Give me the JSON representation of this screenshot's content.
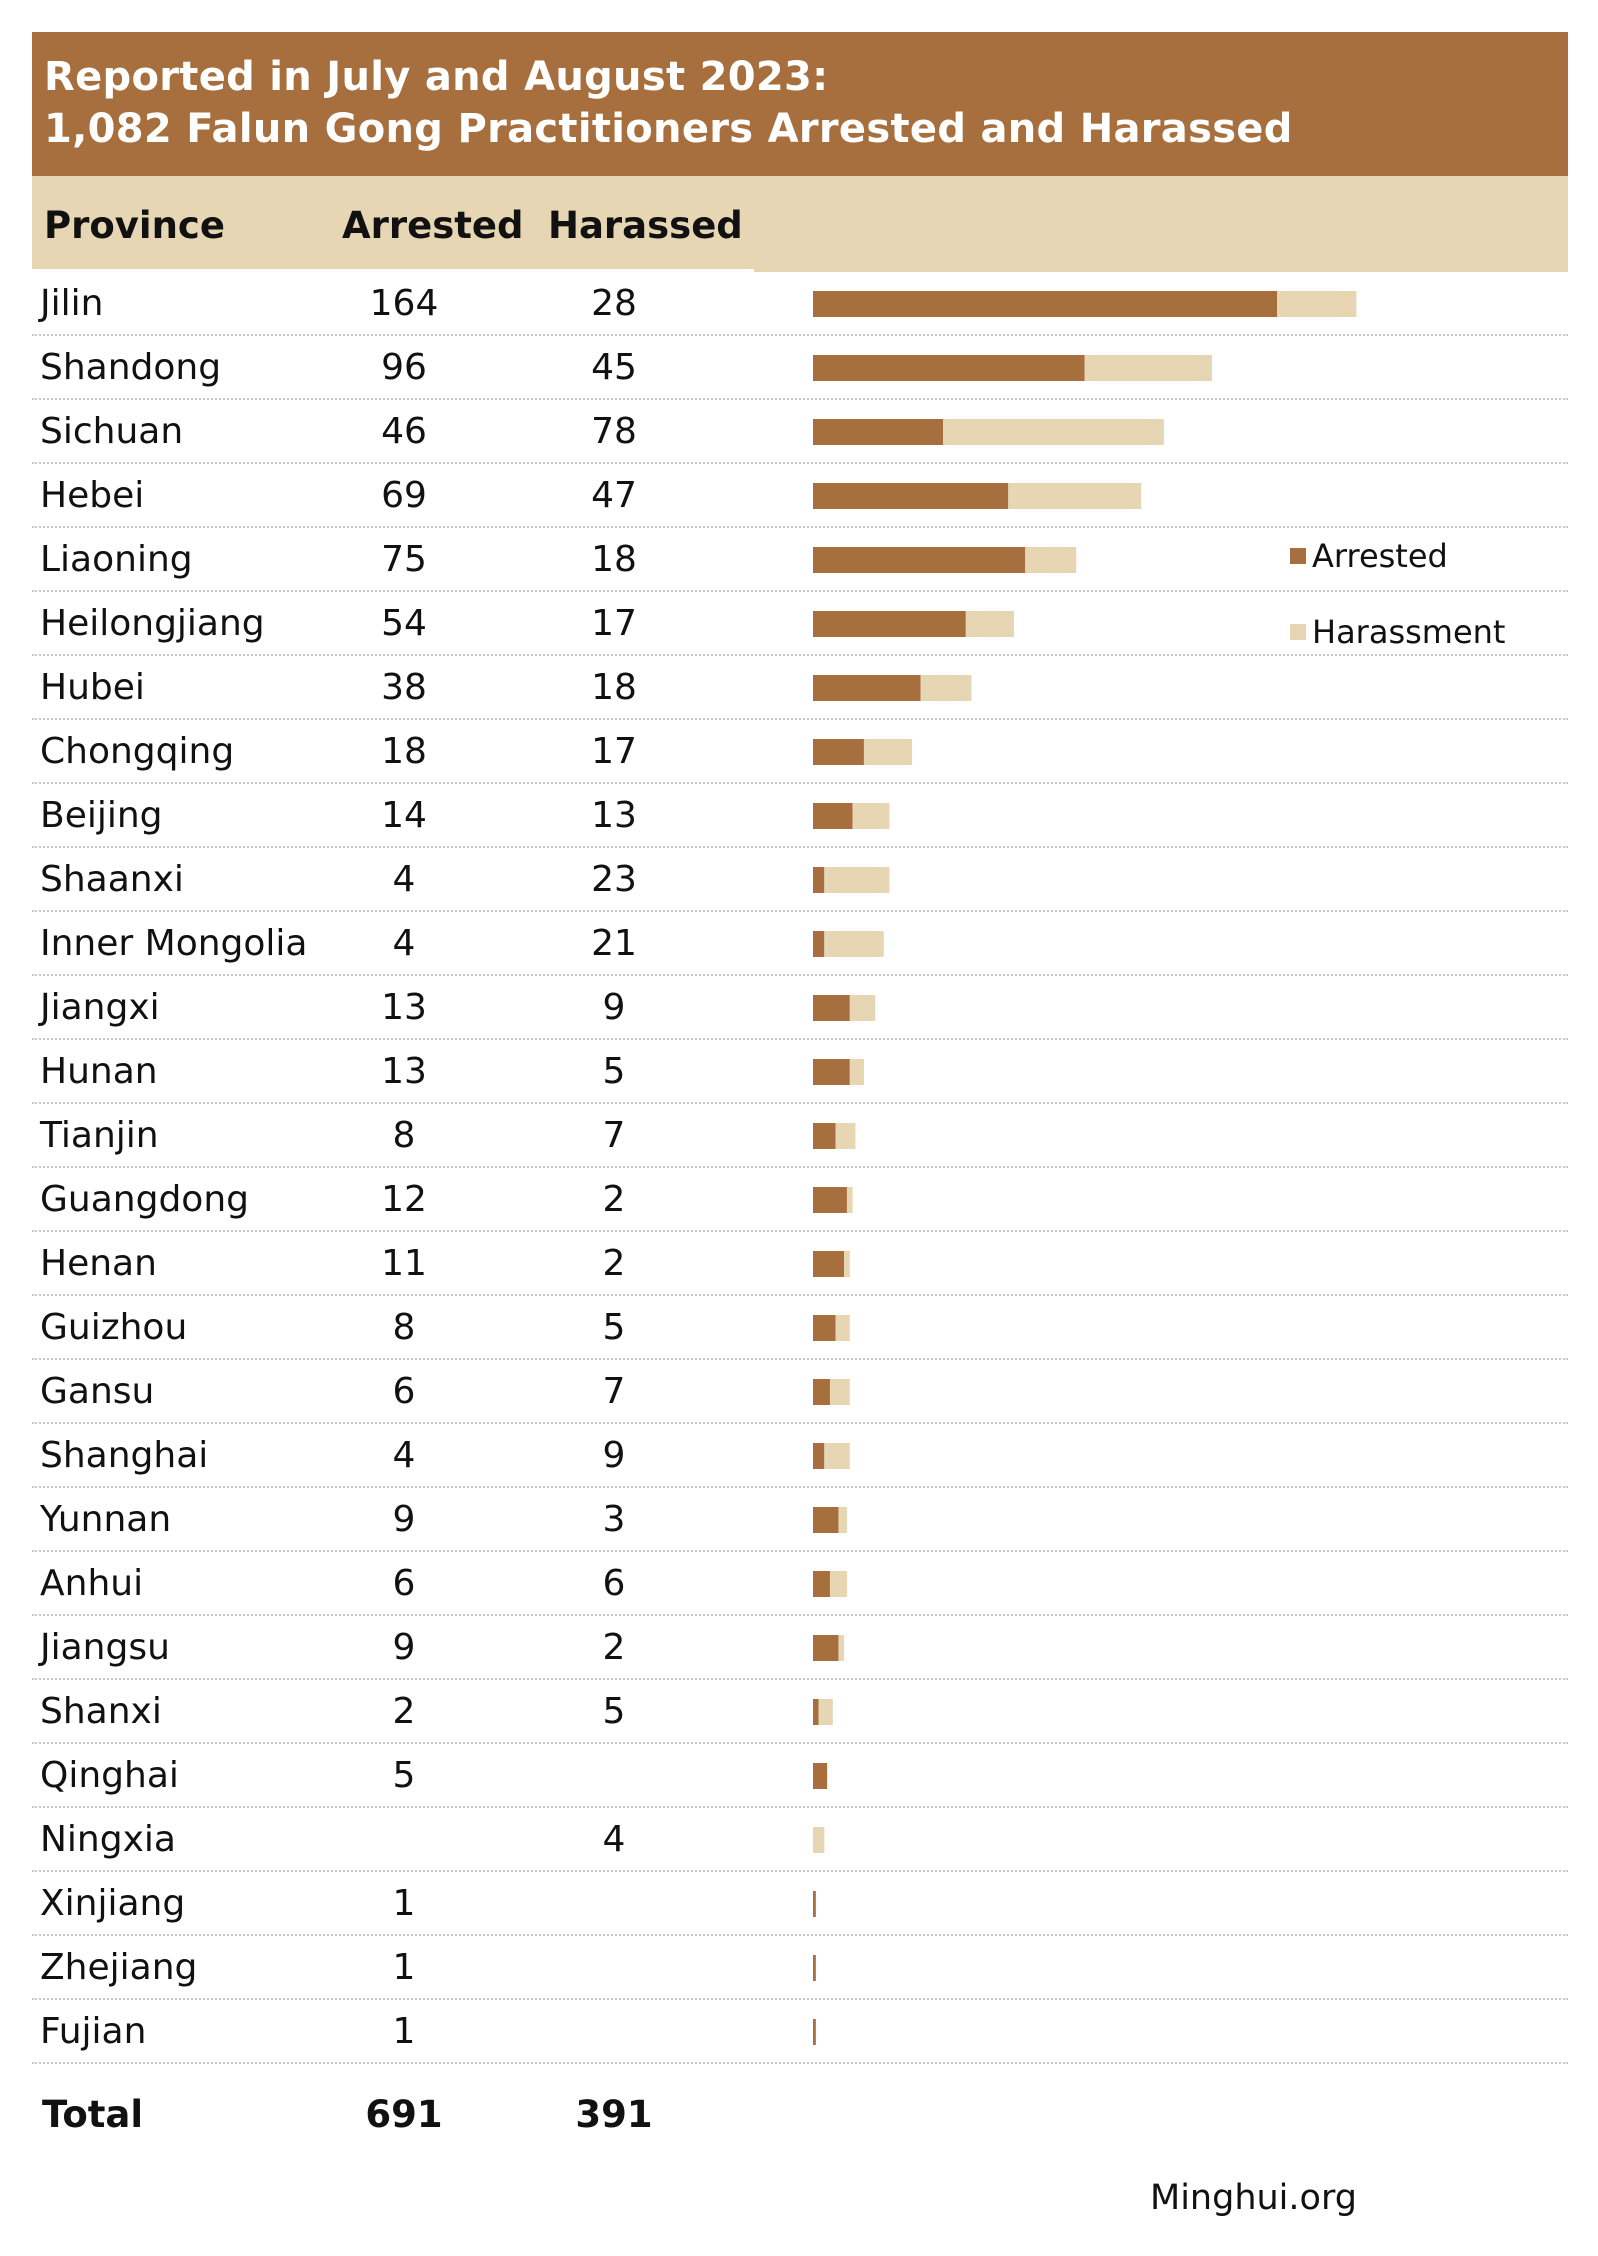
{
  "chart_data": {
    "type": "bar",
    "orientation": "horizontal",
    "stacked": true,
    "title": "Reported in July and August 2023:",
    "subtitle": "1,082 Falun Gong Practitioners Arrested and Harassed",
    "columns": [
      "Province",
      "Arrested",
      "Harassed"
    ],
    "categories": [
      "Jilin",
      "Shandong",
      "Sichuan",
      "Hebei",
      "Liaoning",
      "Heilongjiang",
      "Hubei",
      "Chongqing",
      "Beijing",
      "Shaanxi",
      "Inner Mongolia",
      "Jiangxi",
      "Hunan",
      "Tianjin",
      "Guangdong",
      "Henan",
      "Guizhou",
      "Gansu",
      "Shanghai",
      "Yunnan",
      "Anhui",
      "Jiangsu",
      "Shanxi",
      "Qinghai",
      "Ningxia",
      "Xinjiang",
      "Zhejiang",
      "Fujian"
    ],
    "series": [
      {
        "name": "Arrested",
        "color": "#a86f3e",
        "values": [
          164,
          96,
          46,
          69,
          75,
          54,
          38,
          18,
          14,
          4,
          4,
          13,
          13,
          8,
          12,
          11,
          8,
          6,
          4,
          9,
          6,
          9,
          2,
          5,
          null,
          1,
          1,
          1
        ]
      },
      {
        "name": "Harassment",
        "color": "#e7d6b3",
        "values": [
          28,
          45,
          78,
          47,
          18,
          17,
          18,
          17,
          13,
          23,
          21,
          9,
          5,
          7,
          2,
          2,
          5,
          7,
          9,
          3,
          6,
          2,
          5,
          null,
          4,
          null,
          null,
          null
        ]
      }
    ],
    "legend": {
      "placement": "right",
      "items": [
        "Arrested",
        "Harassment"
      ]
    },
    "xlim": [
      0,
      200
    ],
    "grid": false,
    "total": {
      "label": "Total",
      "arrested": "691",
      "harassed": "391"
    }
  },
  "source": "Minghui.org"
}
